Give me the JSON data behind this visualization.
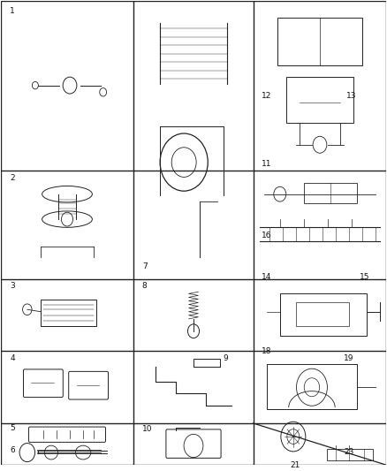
{
  "bg_color": "#ffffff",
  "line_color": "#222222",
  "label_color": "#111111",
  "col_bounds": [
    0.0,
    0.345,
    0.655,
    1.0
  ],
  "row_bounds": [
    1.0,
    0.635,
    0.4,
    0.245,
    0.09,
    0.0
  ],
  "label_fontsize": 6.5,
  "figure_width": 4.38,
  "figure_height": 5.33,
  "dpi": 100
}
